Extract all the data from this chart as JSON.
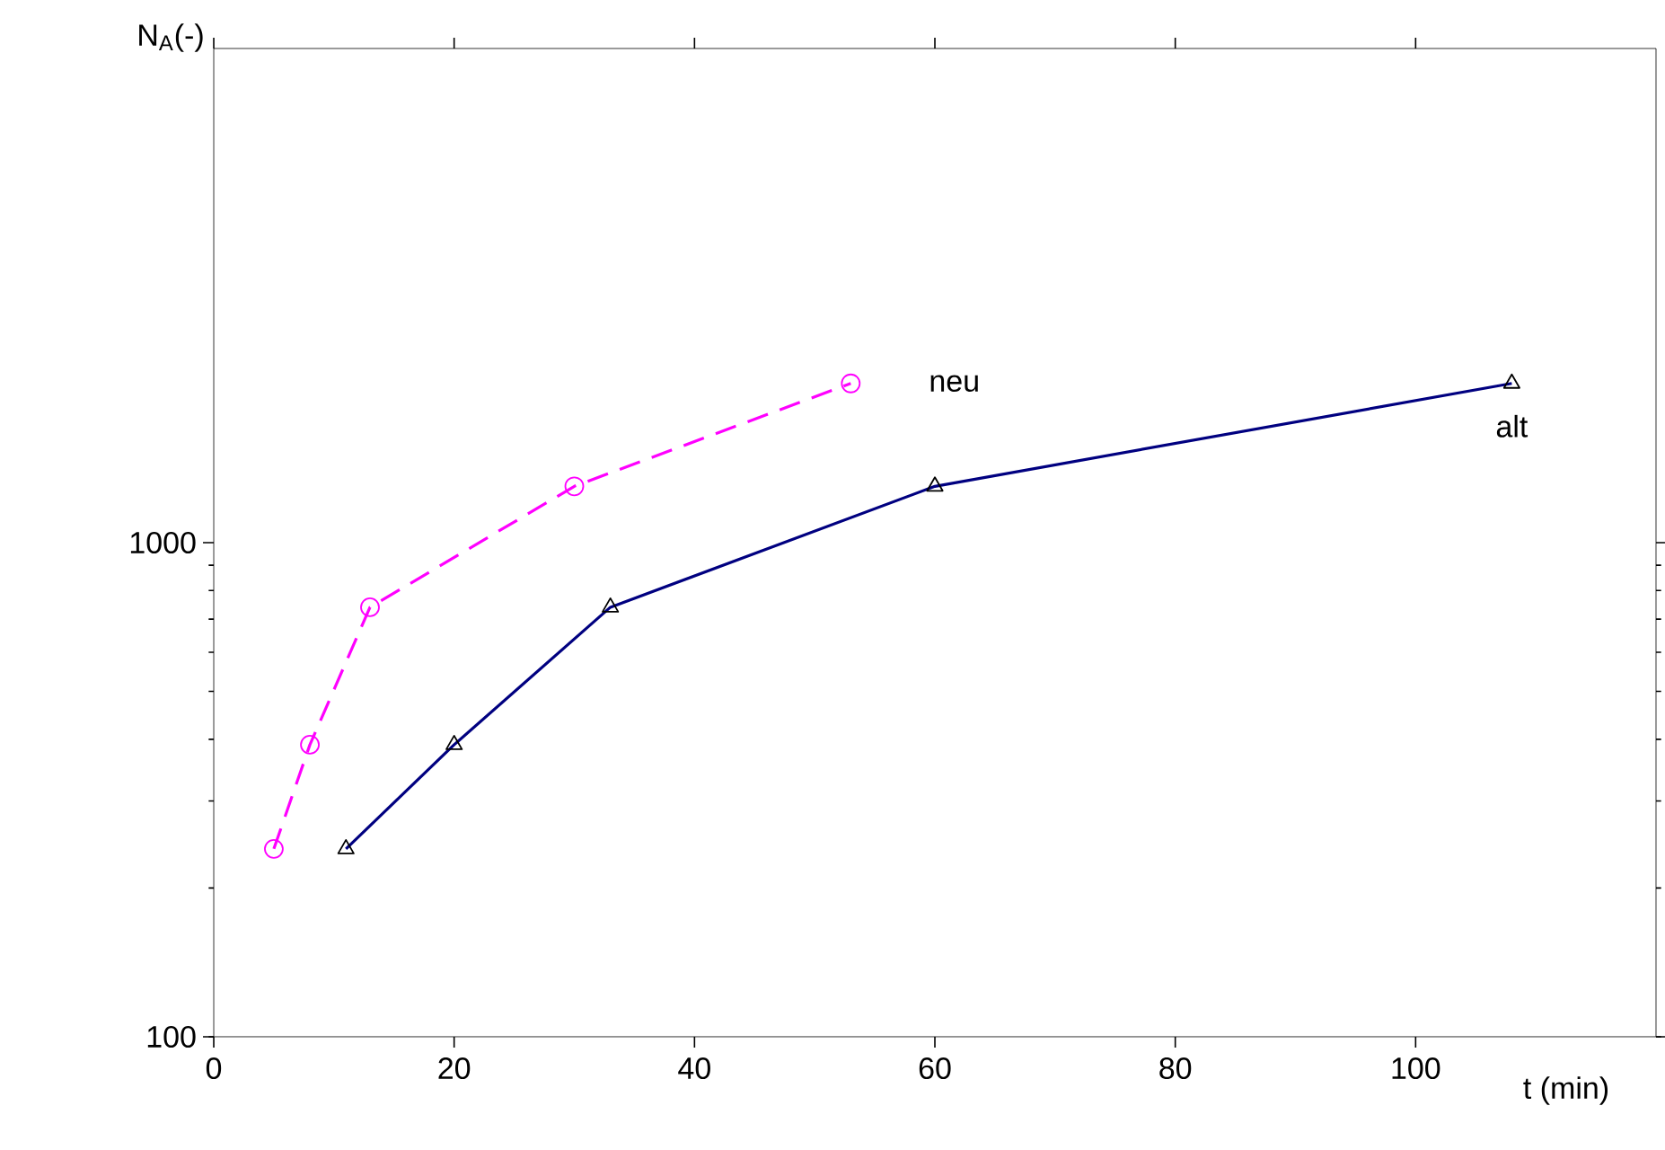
{
  "chart_data": {
    "type": "line",
    "xlabel": "t (min)",
    "ylabel": "N$_{A}$(-)",
    "log": "y",
    "xlim": [
      0,
      120
    ],
    "ylim": [
      100,
      10000
    ],
    "xticks": [
      0,
      20,
      40,
      60,
      80,
      100
    ],
    "yticks": [
      100,
      1000
    ],
    "grid": false,
    "legend": false,
    "series": [
      {
        "name": "neu",
        "color": "#ff00ff",
        "marker": "circle",
        "line_style": "dashed",
        "x": [
          5,
          8,
          13,
          30,
          53
        ],
        "values": [
          240,
          390,
          740,
          1300,
          2100
        ]
      },
      {
        "name": "alt",
        "color": "#000080",
        "marker": "triangle",
        "line_style": "solid",
        "x": [
          11,
          20,
          33,
          60,
          108
        ],
        "values": [
          240,
          390,
          740,
          1300,
          2100
        ]
      }
    ]
  }
}
